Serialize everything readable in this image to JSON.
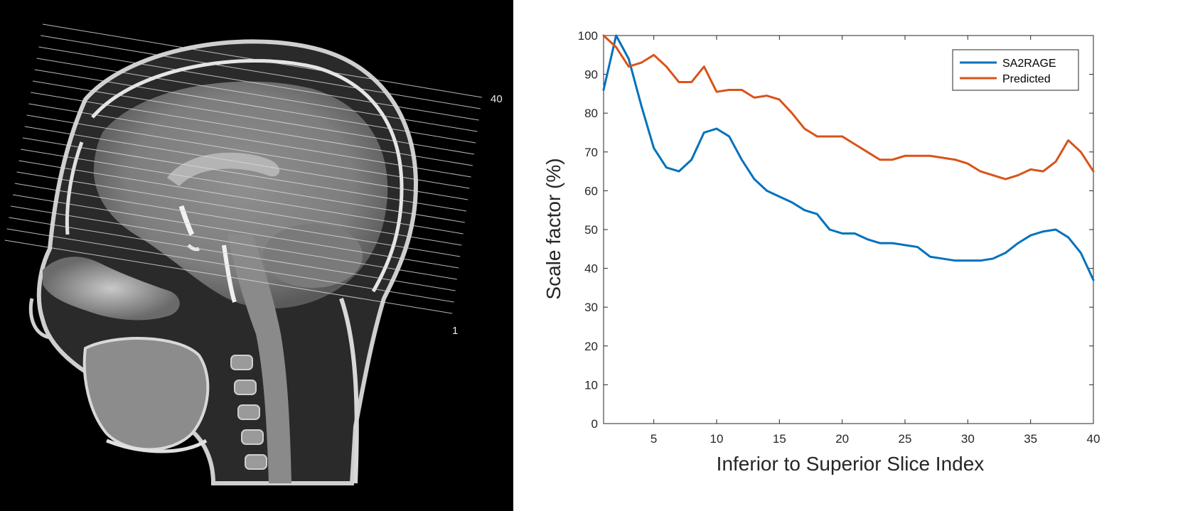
{
  "mri_image": {
    "slice_labels": {
      "bottom": "1",
      "top": "40"
    },
    "slice_count": 40
  },
  "chart_data": {
    "type": "line",
    "xlabel": "Inferior to Superior Slice Index",
    "ylabel": "Scale factor (%)",
    "xlim": [
      1,
      40
    ],
    "ylim": [
      0,
      100
    ],
    "xticks": [
      5,
      10,
      15,
      20,
      25,
      30,
      35,
      40
    ],
    "yticks": [
      0,
      10,
      20,
      30,
      40,
      50,
      60,
      70,
      80,
      90,
      100
    ],
    "grid": false,
    "legend_position": "top-right",
    "x": [
      1,
      2,
      3,
      4,
      5,
      6,
      7,
      8,
      9,
      10,
      11,
      12,
      13,
      14,
      15,
      16,
      17,
      18,
      19,
      20,
      21,
      22,
      23,
      24,
      25,
      26,
      27,
      28,
      29,
      30,
      31,
      32,
      33,
      34,
      35,
      36,
      37,
      38,
      39,
      40
    ],
    "series": [
      {
        "name": "SA2RAGE",
        "color": "#0072BD",
        "values": [
          86,
          100,
          94,
          82,
          71,
          66,
          65,
          68,
          75,
          76,
          74,
          68,
          63,
          60,
          58.5,
          57,
          55,
          54,
          50,
          49,
          49,
          47.5,
          46.5,
          46.5,
          46,
          45.5,
          43,
          42.5,
          42,
          42,
          42,
          42.5,
          44,
          46.5,
          48.5,
          49.5,
          50,
          48,
          44,
          37
        ]
      },
      {
        "name": "Predicted",
        "color": "#D95319",
        "values": [
          100,
          97,
          92,
          93,
          95,
          92,
          88,
          88,
          92,
          85.5,
          86,
          86,
          84,
          84.5,
          83.5,
          80,
          76,
          74,
          74,
          74,
          72,
          70,
          68,
          68,
          69,
          69,
          69,
          68.5,
          68,
          67,
          65,
          64,
          63,
          64,
          65.5,
          65,
          67.5,
          73,
          70,
          65
        ]
      }
    ]
  }
}
